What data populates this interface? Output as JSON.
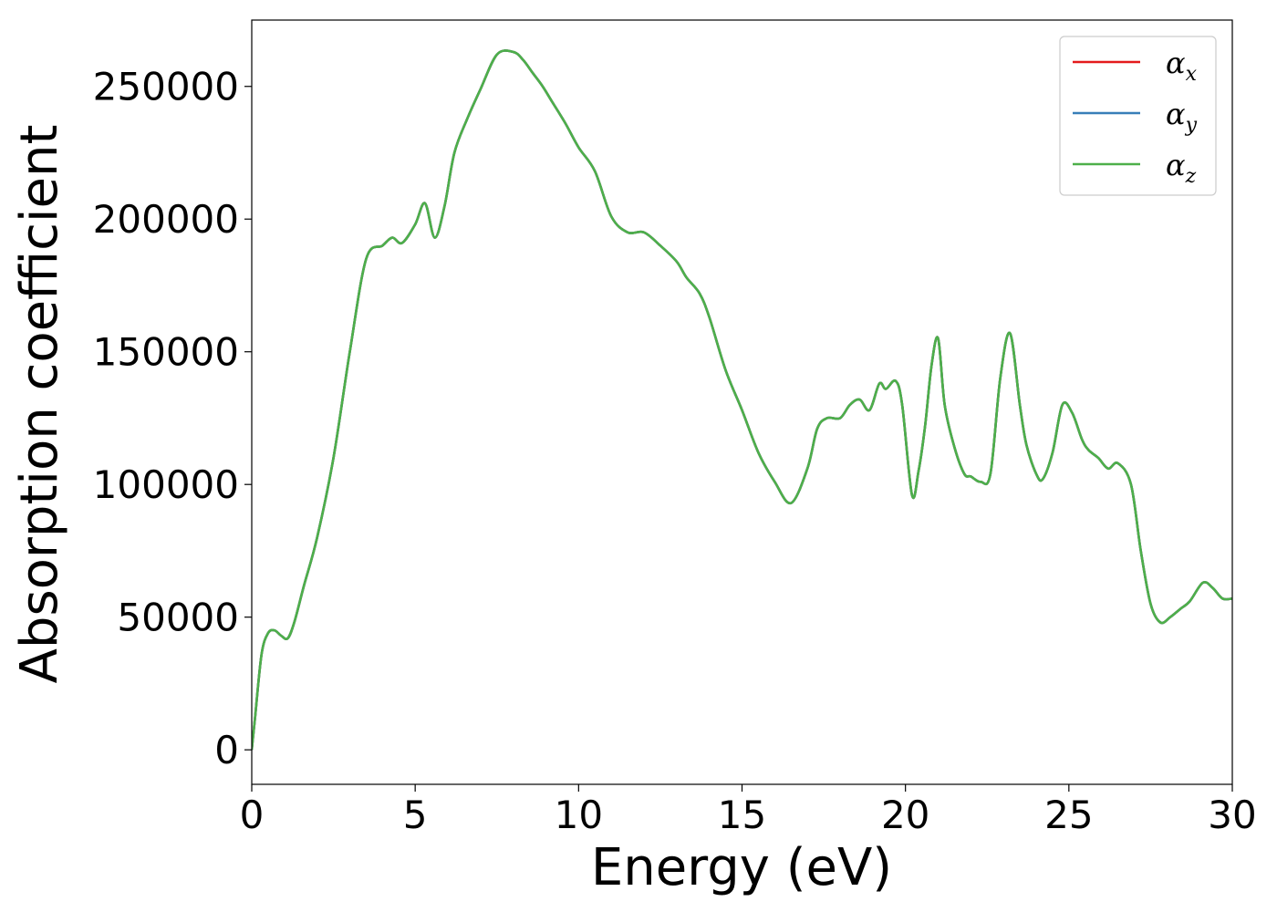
{
  "chart_data": {
    "type": "line",
    "xlabel": "Energy (eV)",
    "ylabel": "Absorption coefficient",
    "xlim": [
      0,
      30
    ],
    "ylim": [
      -13000,
      275000
    ],
    "xticks": [
      0,
      5,
      10,
      15,
      20,
      25,
      30
    ],
    "yticks": [
      0,
      50000,
      100000,
      150000,
      200000,
      250000
    ],
    "grid": false,
    "legend_position": "top-right",
    "legend": [
      {
        "base": "α",
        "sub": "x",
        "color": "#e41a1c"
      },
      {
        "base": "α",
        "sub": "y",
        "color": "#377eb8"
      },
      {
        "base": "α",
        "sub": "z",
        "color": "#4daf4a"
      }
    ],
    "x": [
      0,
      0.1,
      0.3,
      0.5,
      0.7,
      0.9,
      1.1,
      1.3,
      1.6,
      2.0,
      2.5,
      3.0,
      3.5,
      4.0,
      4.3,
      4.6,
      5.0,
      5.3,
      5.6,
      5.9,
      6.2,
      6.6,
      7.0,
      7.5,
      8.0,
      8.3,
      8.6,
      8.9,
      9.2,
      9.6,
      10.0,
      10.5,
      11.0,
      11.5,
      12.0,
      12.5,
      13.0,
      13.3,
      13.7,
      14.0,
      14.5,
      15.0,
      15.5,
      16.0,
      16.5,
      17.0,
      17.3,
      17.6,
      18.0,
      18.3,
      18.6,
      18.9,
      19.2,
      19.4,
      19.7,
      19.9,
      20.2,
      20.4,
      20.6,
      20.8,
      21.0,
      21.2,
      21.5,
      21.8,
      22.0,
      22.3,
      22.6,
      22.9,
      23.2,
      23.5,
      23.7,
      24.0,
      24.2,
      24.5,
      24.8,
      25.1,
      25.4,
      25.6,
      25.9,
      26.2,
      26.5,
      26.9,
      27.2,
      27.5,
      27.8,
      28.1,
      28.4,
      28.7,
      29.1,
      29.4,
      29.7,
      30.0
    ],
    "series": [
      {
        "name": "αx",
        "color": "#e41a1c",
        "values": [
          0,
          12000,
          36000,
          44000,
          45000,
          43000,
          42000,
          48000,
          62000,
          80000,
          110000,
          150000,
          185000,
          190000,
          193000,
          191000,
          198000,
          206000,
          193000,
          205000,
          225000,
          238000,
          249000,
          262000,
          263000,
          260000,
          255000,
          250000,
          244000,
          236000,
          227000,
          218000,
          201000,
          195000,
          195000,
          190000,
          184000,
          178000,
          172000,
          163000,
          143000,
          128000,
          112000,
          101000,
          93000,
          106000,
          121000,
          125000,
          125000,
          130000,
          132000,
          128000,
          138000,
          136000,
          139000,
          130000,
          96000,
          105000,
          122000,
          145000,
          155000,
          130000,
          114000,
          104000,
          103000,
          101000,
          104000,
          140000,
          157000,
          130000,
          115000,
          104000,
          102000,
          112000,
          130000,
          127000,
          117000,
          113000,
          110000,
          106000,
          108000,
          100000,
          75000,
          55000,
          48000,
          50000,
          53000,
          56000,
          63000,
          61000,
          57000,
          57000
        ]
      },
      {
        "name": "αy",
        "color": "#377eb8",
        "values": [
          0,
          12000,
          36000,
          44000,
          45000,
          43000,
          42000,
          48000,
          62000,
          80000,
          110000,
          150000,
          185000,
          190000,
          193000,
          191000,
          198000,
          206000,
          193000,
          205000,
          225000,
          238000,
          249000,
          262000,
          263000,
          260000,
          255000,
          250000,
          244000,
          236000,
          227000,
          218000,
          201000,
          195000,
          195000,
          190000,
          184000,
          178000,
          172000,
          163000,
          143000,
          128000,
          112000,
          101000,
          93000,
          106000,
          121000,
          125000,
          125000,
          130000,
          132000,
          128000,
          138000,
          136000,
          139000,
          130000,
          96000,
          105000,
          122000,
          145000,
          155000,
          130000,
          114000,
          104000,
          103000,
          101000,
          104000,
          140000,
          157000,
          130000,
          115000,
          104000,
          102000,
          112000,
          130000,
          127000,
          117000,
          113000,
          110000,
          106000,
          108000,
          100000,
          75000,
          55000,
          48000,
          50000,
          53000,
          56000,
          63000,
          61000,
          57000,
          57000
        ]
      },
      {
        "name": "αz",
        "color": "#4daf4a",
        "values": [
          0,
          12000,
          36000,
          44000,
          45000,
          43000,
          42000,
          48000,
          62000,
          80000,
          110000,
          150000,
          185000,
          190000,
          193000,
          191000,
          198000,
          206000,
          193000,
          205000,
          225000,
          238000,
          249000,
          262000,
          263000,
          260000,
          255000,
          250000,
          244000,
          236000,
          227000,
          218000,
          201000,
          195000,
          195000,
          190000,
          184000,
          178000,
          172000,
          163000,
          143000,
          128000,
          112000,
          101000,
          93000,
          106000,
          121000,
          125000,
          125000,
          130000,
          132000,
          128000,
          138000,
          136000,
          139000,
          130000,
          96000,
          105000,
          122000,
          145000,
          155000,
          130000,
          114000,
          104000,
          103000,
          101000,
          104000,
          140000,
          157000,
          130000,
          115000,
          104000,
          102000,
          112000,
          130000,
          127000,
          117000,
          113000,
          110000,
          106000,
          108000,
          100000,
          75000,
          55000,
          48000,
          50000,
          53000,
          56000,
          63000,
          61000,
          57000,
          57000
        ]
      }
    ]
  }
}
